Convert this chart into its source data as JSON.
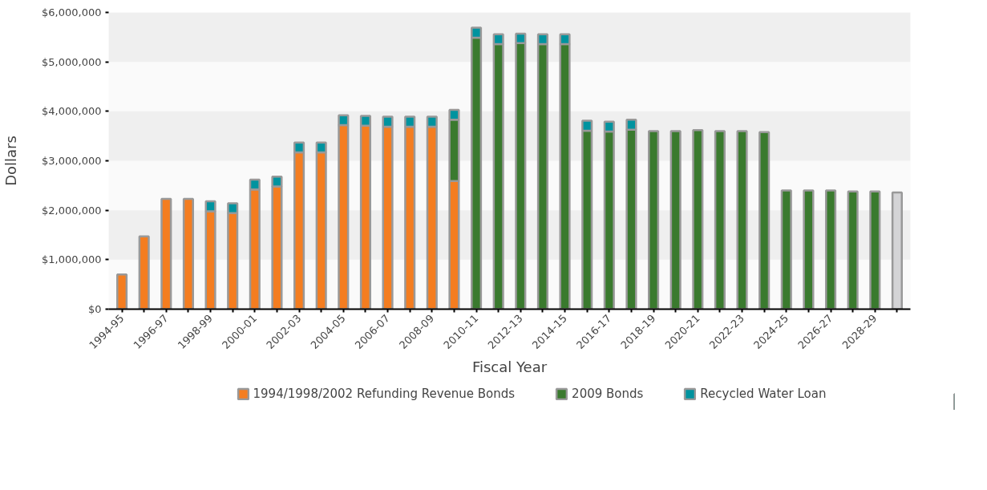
{
  "chart_data": {
    "type": "bar",
    "stacked": true,
    "xlabel": "Fiscal Year",
    "ylabel": "Dollars",
    "categories": [
      "1994-95",
      null,
      "1996-97",
      null,
      "1998-99",
      null,
      "2000-01",
      null,
      "2002-03",
      null,
      "2004-05",
      null,
      "2006-07",
      null,
      "2008-09",
      null,
      "2010-11",
      null,
      "2012-13",
      null,
      "2014-15",
      null,
      "2016-17",
      null,
      "2018-19",
      null,
      "2020-21",
      null,
      "2022-23",
      null,
      "2024-25",
      null,
      "2026-27",
      null,
      "2028-29",
      null
    ],
    "series": [
      {
        "name": "1994/1998/2002 Refunding Revenue Bonds",
        "color": "#f47d20",
        "values": [
          700000,
          1470000,
          2230000,
          2230000,
          1980000,
          1940000,
          2420000,
          2480000,
          3170000,
          3170000,
          3720000,
          3710000,
          3690000,
          3690000,
          3690000,
          2590000,
          null,
          null,
          null,
          null,
          null,
          null,
          null,
          null,
          null,
          null,
          null,
          null,
          null,
          null,
          null,
          null,
          null,
          null,
          null,
          null
        ]
      },
      {
        "name": "2009 Bonds",
        "color": "#3a7a2e",
        "values": [
          null,
          null,
          null,
          null,
          null,
          null,
          null,
          null,
          null,
          null,
          null,
          null,
          null,
          null,
          null,
          1240000,
          5490000,
          5360000,
          5380000,
          5360000,
          5360000,
          3610000,
          3590000,
          3630000,
          3600000,
          3600000,
          3620000,
          3600000,
          3600000,
          3580000,
          2400000,
          2400000,
          2400000,
          2380000,
          2380000,
          null
        ]
      },
      {
        "name": "Recycled Water Loan",
        "color": "#00939f",
        "values": [
          null,
          null,
          null,
          null,
          200000,
          200000,
          200000,
          200000,
          200000,
          200000,
          200000,
          200000,
          200000,
          200000,
          200000,
          200000,
          200000,
          200000,
          190000,
          200000,
          200000,
          200000,
          200000,
          200000,
          null,
          null,
          null,
          null,
          null,
          null,
          null,
          null,
          null,
          null,
          null,
          null
        ]
      },
      {
        "color": "#d4d4d6",
        "values": [
          null,
          null,
          null,
          null,
          null,
          null,
          null,
          null,
          null,
          null,
          null,
          null,
          null,
          null,
          null,
          null,
          null,
          null,
          null,
          null,
          null,
          null,
          null,
          null,
          null,
          null,
          null,
          null,
          null,
          null,
          null,
          null,
          null,
          null,
          null,
          2360000
        ]
      }
    ],
    "ylim": [
      0,
      6000000
    ],
    "yticks": [
      {
        "value": 0,
        "label": "$0"
      },
      {
        "value": 1000000,
        "label": "$1,000,000"
      },
      {
        "value": 2000000,
        "label": "$2,000,000"
      },
      {
        "value": 3000000,
        "label": "$3,000,000"
      },
      {
        "value": 4000000,
        "label": "$4,000,000"
      },
      {
        "value": 5000000,
        "label": "$5,000,000"
      },
      {
        "value": 6000000,
        "label": "$6,000,000"
      }
    ],
    "legend": "bottom"
  }
}
